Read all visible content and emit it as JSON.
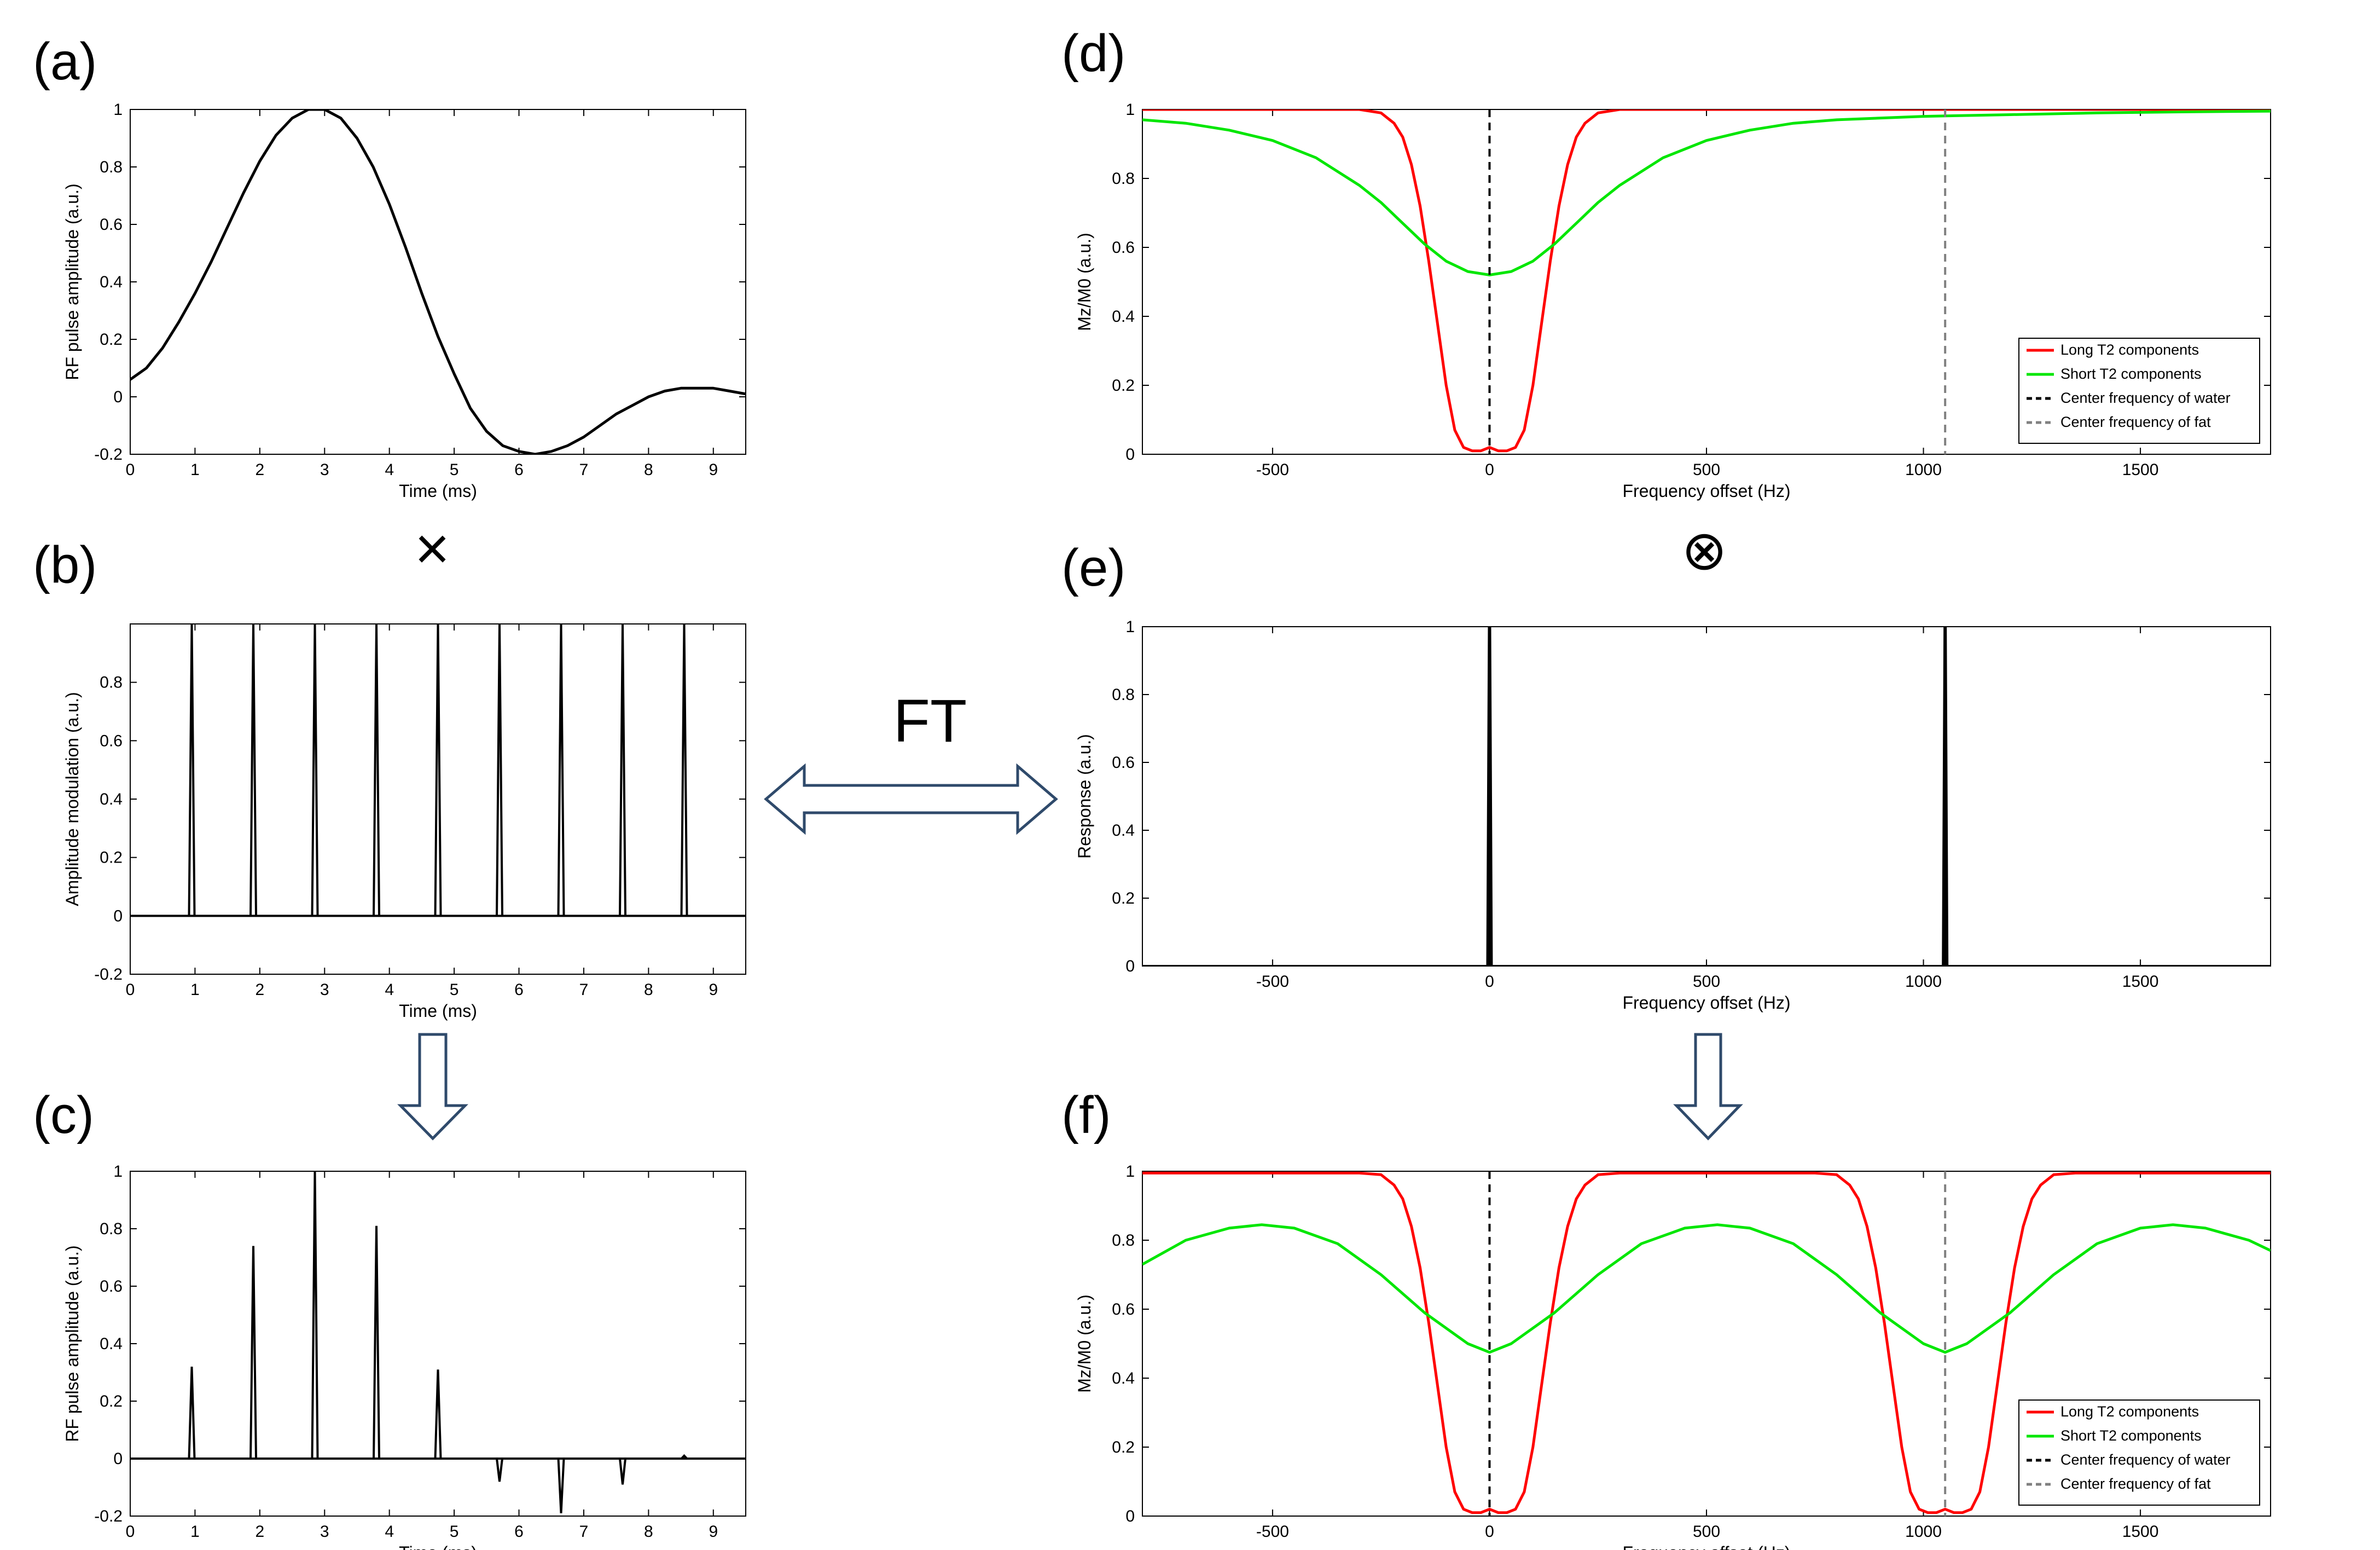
{
  "figure": {
    "panel_labels": [
      "(a)",
      "(b)",
      "(c)",
      "(d)",
      "(e)",
      "(f)"
    ],
    "operators": {
      "times": "×",
      "convolve": "⊗",
      "ft_label": "FT"
    },
    "colors": {
      "long_t2": "#ff0000",
      "short_t2": "#00e600",
      "water": "#000000",
      "fat": "#808080",
      "arrow_stroke": "#2f4a6b",
      "trace": "#000000"
    }
  },
  "chart_data": [
    {
      "id": "a",
      "type": "line",
      "xlabel": "Time (ms)",
      "ylabel": "RF pulse amplitude (a.u.)",
      "xlim": [
        0,
        9.5
      ],
      "ylim": [
        -0.2,
        1
      ],
      "xticks": [
        0,
        1,
        2,
        3,
        4,
        5,
        6,
        7,
        8,
        9
      ],
      "yticks": [
        -0.2,
        0,
        0.2,
        0.4,
        0.6,
        0.8,
        1
      ],
      "series": [
        {
          "color": "#000000",
          "x": [
            0,
            0.25,
            0.5,
            0.75,
            1,
            1.25,
            1.5,
            1.75,
            2,
            2.25,
            2.5,
            2.75,
            3,
            3.25,
            3.5,
            3.75,
            4,
            4.25,
            4.5,
            4.75,
            5,
            5.25,
            5.5,
            5.75,
            6,
            6.25,
            6.5,
            6.75,
            7,
            7.25,
            7.5,
            7.75,
            8,
            8.25,
            8.5,
            8.75,
            9,
            9.25,
            9.5
          ],
          "y": [
            0.06,
            0.1,
            0.17,
            0.26,
            0.36,
            0.47,
            0.59,
            0.71,
            0.82,
            0.91,
            0.97,
            1.0,
            1.0,
            0.97,
            0.9,
            0.8,
            0.67,
            0.52,
            0.36,
            0.21,
            0.08,
            -0.04,
            -0.12,
            -0.17,
            -0.19,
            -0.2,
            -0.19,
            -0.17,
            -0.14,
            -0.1,
            -0.06,
            -0.03,
            0.0,
            0.02,
            0.03,
            0.03,
            0.03,
            0.02,
            0.01
          ]
        }
      ]
    },
    {
      "id": "b",
      "type": "line",
      "xlabel": "Time (ms)",
      "ylabel": "Amplitude modulation (a.u.)",
      "xlim": [
        0,
        9.5
      ],
      "ylim": [
        -0.2,
        1
      ],
      "xticks": [
        0,
        1,
        2,
        3,
        4,
        5,
        6,
        7,
        8,
        9
      ],
      "yticks": [
        -0.2,
        0,
        0.2,
        0.4,
        0.6,
        0.8
      ],
      "series": [
        {
          "color": "#000000",
          "spike_times": [
            0.95,
            1.9,
            2.85,
            3.8,
            4.75,
            5.7,
            6.65,
            7.6,
            8.55
          ],
          "spike_height": 1.0,
          "baseline": 0
        }
      ]
    },
    {
      "id": "c",
      "type": "line",
      "xlabel": "Time (ms)",
      "ylabel": "RF pulse amplitude (a.u.)",
      "xlim": [
        0,
        9.5
      ],
      "ylim": [
        -0.2,
        1
      ],
      "xticks": [
        0,
        1,
        2,
        3,
        4,
        5,
        6,
        7,
        8,
        9
      ],
      "yticks": [
        -0.2,
        0,
        0.2,
        0.4,
        0.6,
        0.8,
        1
      ],
      "series": [
        {
          "color": "#000000",
          "spike_times": [
            0.95,
            1.9,
            2.85,
            3.8,
            4.75,
            5.7,
            6.65,
            7.6,
            8.55
          ],
          "spike_values": [
            0.32,
            0.74,
            1.0,
            0.81,
            0.31,
            -0.08,
            -0.19,
            -0.09,
            0.01
          ],
          "baseline": 0
        }
      ]
    },
    {
      "id": "d",
      "type": "line",
      "xlabel": "Frequency offset (Hz)",
      "ylabel": "Mz/M0 (a.u.)",
      "xlim": [
        -800,
        1800
      ],
      "ylim": [
        0,
        1
      ],
      "xticks": [
        -500,
        0,
        500,
        1000,
        1500
      ],
      "yticks": [
        0,
        0.2,
        0.4,
        0.6,
        0.8,
        1
      ],
      "legend_position": "bottom-right",
      "series": [
        {
          "name": "Long T2 components",
          "color": "#ff0000",
          "x": [
            -800,
            -400,
            -300,
            -250,
            -220,
            -200,
            -180,
            -160,
            -140,
            -120,
            -100,
            -80,
            -60,
            -40,
            -20,
            0,
            20,
            40,
            60,
            80,
            100,
            120,
            140,
            160,
            180,
            200,
            220,
            250,
            300,
            400,
            800,
            1200,
            1800
          ],
          "y": [
            1,
            1,
            1,
            0.99,
            0.96,
            0.92,
            0.84,
            0.72,
            0.56,
            0.38,
            0.2,
            0.07,
            0.02,
            0.01,
            0.01,
            0.02,
            0.01,
            0.01,
            0.02,
            0.07,
            0.2,
            0.38,
            0.56,
            0.72,
            0.84,
            0.92,
            0.96,
            0.99,
            1,
            1,
            1,
            1,
            1
          ]
        },
        {
          "name": "Short T2 components",
          "color": "#00e600",
          "x": [
            -800,
            -700,
            -600,
            -500,
            -400,
            -300,
            -250,
            -200,
            -150,
            -100,
            -50,
            0,
            50,
            100,
            150,
            200,
            250,
            300,
            400,
            500,
            600,
            700,
            800,
            1000,
            1200,
            1400,
            1600,
            1800
          ],
          "y": [
            0.97,
            0.96,
            0.94,
            0.91,
            0.86,
            0.78,
            0.73,
            0.67,
            0.61,
            0.56,
            0.53,
            0.52,
            0.53,
            0.56,
            0.61,
            0.67,
            0.73,
            0.78,
            0.86,
            0.91,
            0.94,
            0.96,
            0.97,
            0.98,
            0.985,
            0.99,
            0.993,
            0.995
          ]
        },
        {
          "name": "Center frequency of water",
          "color": "#000000",
          "dashed": true,
          "vline": 0
        },
        {
          "name": "Center frequency of fat",
          "color": "#808080",
          "dashed": true,
          "vline": 1050
        }
      ]
    },
    {
      "id": "e",
      "type": "line",
      "xlabel": "Frequency offset (Hz)",
      "ylabel": "Response (a.u.)",
      "xlim": [
        -800,
        1800
      ],
      "ylim": [
        0,
        1
      ],
      "xticks": [
        -500,
        0,
        500,
        1000,
        1500
      ],
      "yticks": [
        0,
        0.2,
        0.4,
        0.6,
        0.8,
        1
      ],
      "series": [
        {
          "color": "#000000",
          "spike_freqs": [
            0,
            1050
          ],
          "spike_height": 1.0,
          "baseline": 0
        }
      ]
    },
    {
      "id": "f",
      "type": "line",
      "xlabel": "Frequency offset (Hz)",
      "ylabel": "Mz/M0 (a.u.)",
      "xlim": [
        -800,
        1800
      ],
      "ylim": [
        0,
        1
      ],
      "xticks": [
        -500,
        0,
        500,
        1000,
        1500
      ],
      "yticks": [
        0,
        0.2,
        0.4,
        0.6,
        0.8,
        1
      ],
      "legend_position": "bottom-right",
      "series": [
        {
          "name": "Long T2 components",
          "color": "#ff0000",
          "x": [
            -800,
            -300,
            -250,
            -220,
            -200,
            -180,
            -160,
            -140,
            -120,
            -100,
            -80,
            -60,
            -40,
            -20,
            0,
            20,
            40,
            60,
            80,
            100,
            120,
            140,
            160,
            180,
            200,
            220,
            250,
            300,
            750,
            800,
            830,
            850,
            870,
            890,
            910,
            930,
            950,
            970,
            990,
            1010,
            1030,
            1050,
            1070,
            1090,
            1110,
            1130,
            1150,
            1170,
            1190,
            1210,
            1230,
            1250,
            1270,
            1300,
            1350,
            1800
          ],
          "y": [
            0.995,
            0.995,
            0.99,
            0.96,
            0.92,
            0.84,
            0.72,
            0.56,
            0.38,
            0.2,
            0.07,
            0.02,
            0.01,
            0.01,
            0.02,
            0.01,
            0.01,
            0.02,
            0.07,
            0.2,
            0.38,
            0.56,
            0.72,
            0.84,
            0.92,
            0.96,
            0.99,
            0.995,
            0.995,
            0.99,
            0.96,
            0.92,
            0.84,
            0.72,
            0.56,
            0.38,
            0.2,
            0.07,
            0.02,
            0.01,
            0.01,
            0.02,
            0.01,
            0.01,
            0.02,
            0.07,
            0.2,
            0.38,
            0.56,
            0.72,
            0.84,
            0.92,
            0.96,
            0.99,
            0.995,
            0.995
          ]
        },
        {
          "name": "Short T2 components",
          "color": "#00e600",
          "x": [
            -800,
            -700,
            -600,
            -525,
            -450,
            -350,
            -250,
            -150,
            -50,
            0,
            50,
            150,
            250,
            350,
            450,
            525,
            600,
            700,
            800,
            900,
            1000,
            1050,
            1100,
            1200,
            1300,
            1400,
            1500,
            1575,
            1650,
            1750,
            1800
          ],
          "y": [
            0.73,
            0.8,
            0.835,
            0.845,
            0.835,
            0.79,
            0.7,
            0.59,
            0.5,
            0.475,
            0.5,
            0.59,
            0.7,
            0.79,
            0.835,
            0.845,
            0.835,
            0.79,
            0.7,
            0.59,
            0.5,
            0.475,
            0.5,
            0.59,
            0.7,
            0.79,
            0.835,
            0.845,
            0.835,
            0.8,
            0.77
          ]
        },
        {
          "name": "Center frequency of water",
          "color": "#000000",
          "dashed": true,
          "vline": 0
        },
        {
          "name": "Center frequency of fat",
          "color": "#808080",
          "dashed": true,
          "vline": 1050
        }
      ]
    }
  ]
}
